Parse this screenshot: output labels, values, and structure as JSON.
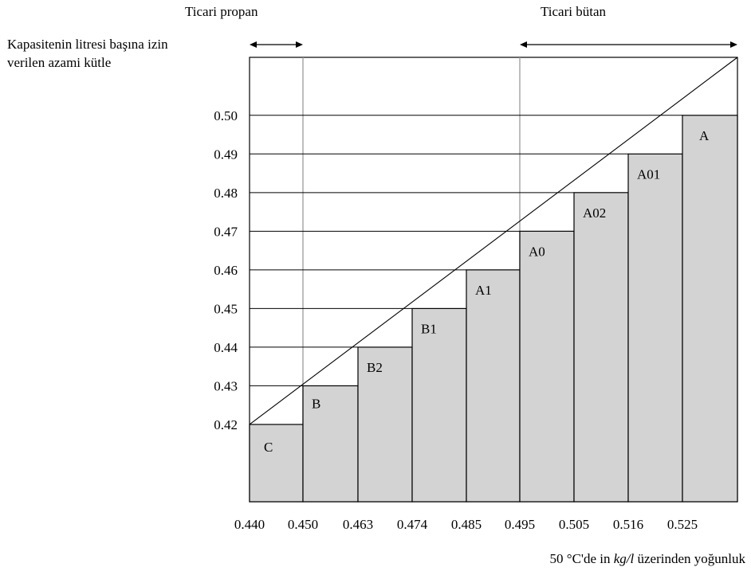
{
  "chart_data": {
    "type": "bar",
    "xlabel_parts": {
      "prefix": "50 °C'de in ",
      "unit": "kg/l",
      "suffix": " üzerinden yoğunluk"
    },
    "ylabel_lines": [
      "Kapasitenin litresi başına izin",
      "verilen azami kütle"
    ],
    "x_ticks": [
      "0.440",
      "0.450",
      "0.463",
      "0.474",
      "0.485",
      "0.495",
      "0.505",
      "0.516",
      "0.525"
    ],
    "y_ticks": [
      "0.42",
      "0.43",
      "0.44",
      "0.45",
      "0.46",
      "0.47",
      "0.48",
      "0.49",
      "0.50"
    ],
    "ylim": [
      0.4,
      0.515
    ],
    "ranges": [
      {
        "label": "Ticari propan",
        "from_tick": 0,
        "to_tick": 1
      },
      {
        "label": "Ticari bütan",
        "from_tick": 5,
        "to_tick": 9
      }
    ],
    "blocks": [
      {
        "label": "C",
        "x_from": "0.440",
        "x_to": "0.450",
        "value": 0.42
      },
      {
        "label": "B",
        "x_from": "0.450",
        "x_to": "0.463",
        "value": 0.43
      },
      {
        "label": "B2",
        "x_from": "0.463",
        "x_to": "0.474",
        "value": 0.44
      },
      {
        "label": "B1",
        "x_from": "0.474",
        "x_to": "0.485",
        "value": 0.45
      },
      {
        "label": "A1",
        "x_from": "0.485",
        "x_to": "0.495",
        "value": 0.46
      },
      {
        "label": "A0",
        "x_from": "0.495",
        "x_to": "0.505",
        "value": 0.47
      },
      {
        "label": "A02",
        "x_from": "0.505",
        "x_to": "0.516",
        "value": 0.48
      },
      {
        "label": "A01",
        "x_from": "0.516",
        "x_to": "0.525",
        "value": 0.49
      },
      {
        "label": "A",
        "x_from": "0.525",
        "x_to": "",
        "value": 0.5
      }
    ],
    "bar_color": "#d3d3d3",
    "grid": true
  }
}
